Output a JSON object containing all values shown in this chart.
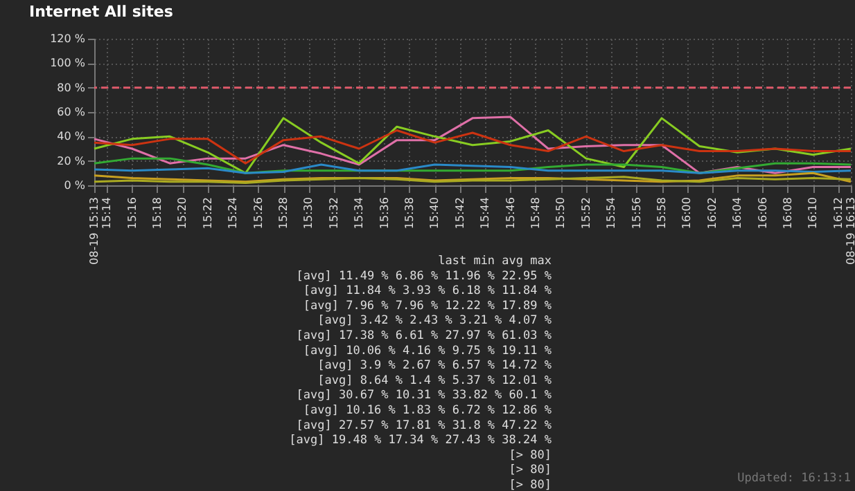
{
  "chart_data": {
    "type": "line",
    "title": "Internet All sites",
    "x": [
      15.2167,
      15.2667,
      15.3167,
      15.3667,
      15.4167,
      15.4667,
      15.5167,
      15.5667,
      15.6167,
      15.6667,
      15.7167,
      15.7667,
      15.8167,
      15.8667,
      15.9167,
      15.9667,
      16.0167,
      16.0667,
      16.1167,
      16.1667,
      16.2167
    ],
    "series": [
      {
        "color": "#e070a8",
        "values": [
          38,
          30,
          18,
          22,
          22,
          33,
          26,
          17,
          37,
          37,
          55,
          56,
          30,
          32,
          33,
          33,
          10,
          15,
          10,
          15,
          15
        ]
      },
      {
        "color": "#88cc22",
        "values": [
          30,
          38,
          40,
          27,
          10,
          55,
          35,
          18,
          48,
          40,
          33,
          36,
          45,
          22,
          15,
          55,
          32,
          27,
          30,
          25,
          30
        ]
      },
      {
        "color": "#cc3311",
        "values": [
          35,
          33,
          38,
          38,
          18,
          37,
          40,
          30,
          45,
          35,
          43,
          33,
          28,
          40,
          28,
          33,
          28,
          28,
          30,
          28,
          28
        ]
      },
      {
        "color": "#33aa33",
        "values": [
          18,
          22,
          22,
          17,
          10,
          12,
          12,
          12,
          12,
          12,
          12,
          12,
          15,
          17,
          17,
          15,
          10,
          14,
          18,
          18,
          17
        ]
      },
      {
        "color": "#2a8ac8",
        "values": [
          13,
          12,
          13,
          14,
          10,
          11,
          17,
          12,
          12,
          17,
          16,
          15,
          12,
          12,
          12,
          12,
          10,
          12,
          12,
          11,
          12
        ]
      },
      {
        "color": "#c8a020",
        "values": [
          8,
          6,
          5,
          4,
          3,
          5,
          6,
          6,
          6,
          4,
          5,
          6,
          6,
          5,
          4,
          3,
          4,
          8,
          8,
          10,
          3
        ]
      },
      {
        "color": "#aaaa22",
        "values": [
          3,
          4,
          3,
          3,
          2,
          4,
          5,
          6,
          5,
          3,
          4,
          4,
          5,
          6,
          7,
          4,
          3,
          6,
          5,
          6,
          5
        ]
      }
    ],
    "xlim": [
      15.2167,
      16.2167
    ],
    "xticks": [
      {
        "value": 15.2167,
        "label": "08-19 15:13"
      },
      {
        "value": 15.2333,
        "label": "15:14"
      },
      {
        "value": 15.2667,
        "label": "15:16"
      },
      {
        "value": 15.3,
        "label": "15:18"
      },
      {
        "value": 15.3333,
        "label": "15:20"
      },
      {
        "value": 15.3667,
        "label": "15:22"
      },
      {
        "value": 15.4,
        "label": "15:24"
      },
      {
        "value": 15.4333,
        "label": "15:26"
      },
      {
        "value": 15.4667,
        "label": "15:28"
      },
      {
        "value": 15.5,
        "label": "15:30"
      },
      {
        "value": 15.5333,
        "label": "15:32"
      },
      {
        "value": 15.5667,
        "label": "15:34"
      },
      {
        "value": 15.6,
        "label": "15:36"
      },
      {
        "value": 15.6333,
        "label": "15:38"
      },
      {
        "value": 15.6667,
        "label": "15:40"
      },
      {
        "value": 15.7,
        "label": "15:42"
      },
      {
        "value": 15.7333,
        "label": "15:44"
      },
      {
        "value": 15.7667,
        "label": "15:46"
      },
      {
        "value": 15.8,
        "label": "15:48"
      },
      {
        "value": 15.8333,
        "label": "15:50"
      },
      {
        "value": 15.8667,
        "label": "15:52"
      },
      {
        "value": 15.9,
        "label": "15:54"
      },
      {
        "value": 15.9333,
        "label": "15:56"
      },
      {
        "value": 15.9667,
        "label": "15:58"
      },
      {
        "value": 16.0,
        "label": "16:00"
      },
      {
        "value": 16.0333,
        "label": "16:02"
      },
      {
        "value": 16.0667,
        "label": "16:04"
      },
      {
        "value": 16.1,
        "label": "16:06"
      },
      {
        "value": 16.1333,
        "label": "16:08"
      },
      {
        "value": 16.1667,
        "label": "16:10"
      },
      {
        "value": 16.2,
        "label": "16:12"
      },
      {
        "value": 16.2167,
        "label": "08-19 16:13"
      }
    ],
    "ylim": [
      0,
      120
    ],
    "yticks": [
      {
        "value": 0,
        "label": "0 %"
      },
      {
        "value": 20,
        "label": "20 %"
      },
      {
        "value": 40,
        "label": "40 %"
      },
      {
        "value": 60,
        "label": "60 %"
      },
      {
        "value": 80,
        "label": "80 %"
      },
      {
        "value": 100,
        "label": "100 %"
      },
      {
        "value": 120,
        "label": "120 %"
      }
    ],
    "ref_lines": [
      {
        "axis": "y",
        "value": 80,
        "color": "#e05a6a",
        "line_style": "dashed"
      }
    ],
    "grid": true,
    "legend": false,
    "line_style": "solid",
    "annotations": [
      "last min avg max",
      "[avg] 11.49 % 6.86 % 11.96 % 22.95 %",
      "[avg] 11.84 % 3.93 % 6.18 % 11.84 %",
      "[avg] 7.96 % 7.96 % 12.22 % 17.89 %",
      "[avg] 3.42 % 2.43 % 3.21 % 4.07 %",
      "[avg] 17.38 % 6.61 % 27.97 % 61.03 %",
      "[avg] 10.06 % 4.16 % 9.75 % 19.11 %",
      "[avg] 3.9 % 2.67 % 6.57 % 14.72 %",
      "[avg] 8.64 % 1.4 % 5.37 % 12.01 %",
      "[avg] 30.67 % 10.31 % 33.82 % 60.1 %",
      "[avg] 10.16 % 1.83 % 6.72 % 12.86 %",
      "[avg] 27.57 % 17.81 % 31.8 % 47.22 %",
      "[avg] 19.48 % 17.34 % 27.43 % 38.24 %",
      "[> 80]",
      "[> 80]",
      "[> 80]",
      "Updated: 16:13:1"
    ]
  }
}
